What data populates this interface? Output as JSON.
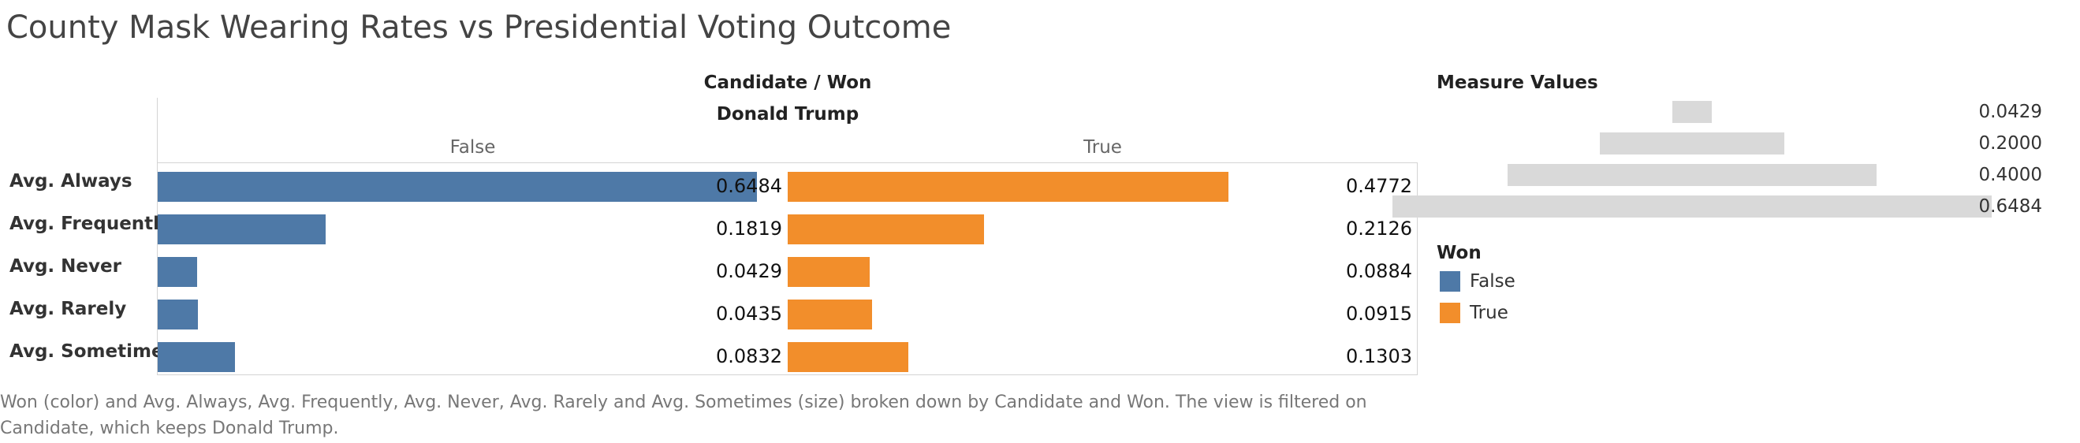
{
  "title": "County Mask Wearing Rates vs Presidential Voting Outcome",
  "header": {
    "caption": "Candidate  /  Won",
    "candidate": "Donald Trump"
  },
  "colors": {
    "false": "#4e79a7",
    "true": "#f28e2b",
    "measure_bar": "#d9d9d9"
  },
  "chart_data": {
    "type": "bar",
    "orientation": "horizontal",
    "candidate": "Donald Trump",
    "categories": [
      "Avg. Always",
      "Avg. Frequently",
      "Avg. Never",
      "Avg. Rarely",
      "Avg. Sometimes"
    ],
    "series": [
      {
        "name": "False",
        "values": [
          0.6484,
          0.1819,
          0.0429,
          0.0435,
          0.0832
        ]
      },
      {
        "name": "True",
        "values": [
          0.4772,
          0.2126,
          0.0884,
          0.0915,
          0.1303
        ]
      }
    ],
    "xlim": [
      0,
      0.6484
    ]
  },
  "measure_legend": {
    "title": "Measure Values",
    "values": [
      "0.0429",
      "0.2000",
      "0.4000",
      "0.6484"
    ],
    "numeric": [
      0.0429,
      0.2,
      0.4,
      0.6484
    ]
  },
  "color_legend": {
    "title": "Won",
    "items": [
      "False",
      "True"
    ]
  },
  "caption": "Won (color) and Avg. Always, Avg. Frequently, Avg. Never, Avg. Rarely and Avg. Sometimes (size) broken down by Candidate and Won. The view is filtered on Candidate, which keeps Donald Trump."
}
